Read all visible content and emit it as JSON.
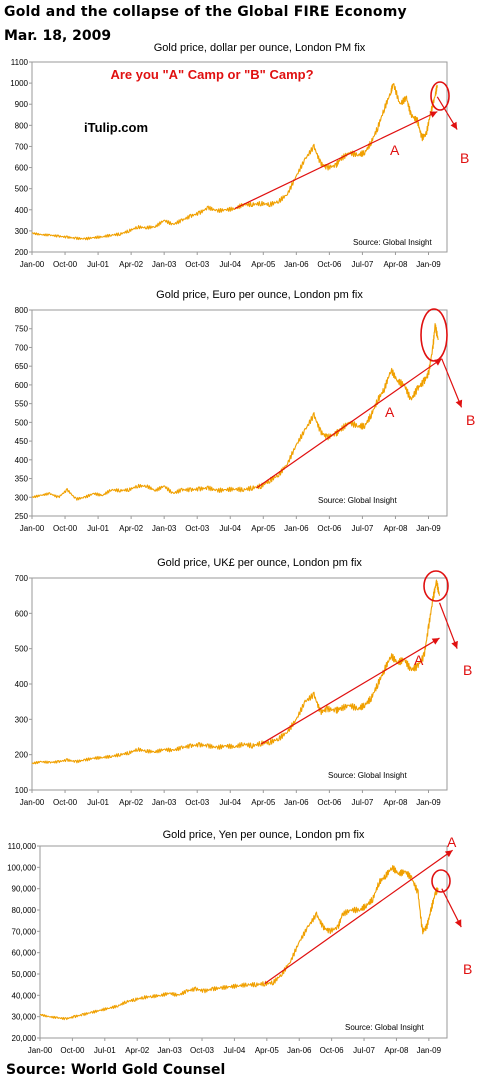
{
  "header": {
    "title": "Gold and the collapse of the Global FIRE Economy",
    "date": "Mar. 18, 2009"
  },
  "footer": {
    "source": "Source: World Gold Counsel"
  },
  "colors": {
    "line": "#f0a000",
    "annotation": "#e01010",
    "plot_border": "#9a9a9a",
    "text": "#000000"
  },
  "chart_data": [
    {
      "type": "line",
      "title": "Gold price, dollar per ounce, London PM fix",
      "subtitle": "Are you \"A\" Camp or \"B\" Camp?",
      "watermark": "iTulip.com",
      "source_note": "Source: Global Insight",
      "xlabel": "",
      "ylabel": "",
      "x_ticks": [
        "Jan-00",
        "Oct-00",
        "Jul-01",
        "Apr-02",
        "Jan-03",
        "Oct-03",
        "Jul-04",
        "Apr-05",
        "Jan-06",
        "Oct-06",
        "Jul-07",
        "Apr-08",
        "Jan-09"
      ],
      "y_ticks": [
        "200",
        "300",
        "400",
        "500",
        "600",
        "700",
        "800",
        "900",
        "1000",
        "1100"
      ],
      "ylim": [
        200,
        1100
      ],
      "grid": false,
      "series": [
        {
          "values": [
            [
              2000.0,
              290
            ],
            [
              2000.2,
              282
            ],
            [
              2000.4,
              280
            ],
            [
              2000.6,
              275
            ],
            [
              2000.8,
              270
            ],
            [
              2001.0,
              265
            ],
            [
              2001.2,
              262
            ],
            [
              2001.4,
              268
            ],
            [
              2001.6,
              272
            ],
            [
              2001.8,
              280
            ],
            [
              2002.0,
              285
            ],
            [
              2002.2,
              300
            ],
            [
              2002.4,
              318
            ],
            [
              2002.6,
              315
            ],
            [
              2002.8,
              320
            ],
            [
              2003.0,
              350
            ],
            [
              2003.2,
              330
            ],
            [
              2003.4,
              350
            ],
            [
              2003.6,
              370
            ],
            [
              2003.8,
              385
            ],
            [
              2004.0,
              410
            ],
            [
              2004.2,
              395
            ],
            [
              2004.4,
              400
            ],
            [
              2004.6,
              405
            ],
            [
              2004.8,
              425
            ],
            [
              2005.0,
              425
            ],
            [
              2005.2,
              430
            ],
            [
              2005.4,
              425
            ],
            [
              2005.6,
              440
            ],
            [
              2005.8,
              475
            ],
            [
              2006.0,
              560
            ],
            [
              2006.2,
              640
            ],
            [
              2006.4,
              700
            ],
            [
              2006.55,
              620
            ],
            [
              2006.7,
              600
            ],
            [
              2006.9,
              610
            ],
            [
              2007.0,
              640
            ],
            [
              2007.2,
              670
            ],
            [
              2007.4,
              660
            ],
            [
              2007.55,
              670
            ],
            [
              2007.7,
              720
            ],
            [
              2007.85,
              790
            ],
            [
              2008.0,
              880
            ],
            [
              2008.15,
              960
            ],
            [
              2008.2,
              1000
            ],
            [
              2008.35,
              900
            ],
            [
              2008.5,
              930
            ],
            [
              2008.6,
              850
            ],
            [
              2008.75,
              820
            ],
            [
              2008.85,
              740
            ],
            [
              2008.95,
              760
            ],
            [
              2009.05,
              860
            ],
            [
              2009.15,
              940
            ],
            [
              2009.2,
              990
            ]
          ]
        }
      ],
      "annotations": [
        {
          "label": "A",
          "from": [
            2004.6,
            405
          ],
          "to": [
            2009.2,
            865
          ]
        },
        {
          "label": "B",
          "from": [
            2009.2,
            935
          ],
          "to": [
            2009.65,
            780
          ]
        }
      ]
    },
    {
      "type": "line",
      "title": "Gold price, Euro per ounce, London pm fix",
      "source_note": "Source: Global Insight",
      "xlabel": "",
      "ylabel": "",
      "x_ticks": [
        "Jan-00",
        "Oct-00",
        "Jul-01",
        "Apr-02",
        "Jan-03",
        "Oct-03",
        "Jul-04",
        "Apr-05",
        "Jan-06",
        "Oct-06",
        "Jul-07",
        "Apr-08",
        "Jan-09"
      ],
      "y_ticks": [
        "250",
        "300",
        "350",
        "400",
        "450",
        "500",
        "550",
        "600",
        "650",
        "700",
        "750",
        "800"
      ],
      "ylim": [
        250,
        800
      ],
      "grid": false,
      "series": [
        {
          "values": [
            [
              2000.0,
              300
            ],
            [
              2000.2,
              305
            ],
            [
              2000.4,
              310
            ],
            [
              2000.6,
              300
            ],
            [
              2000.8,
              320
            ],
            [
              2001.0,
              295
            ],
            [
              2001.2,
              300
            ],
            [
              2001.4,
              310
            ],
            [
              2001.6,
              305
            ],
            [
              2001.8,
              320
            ],
            [
              2002.0,
              318
            ],
            [
              2002.2,
              320
            ],
            [
              2002.4,
              330
            ],
            [
              2002.6,
              330
            ],
            [
              2002.8,
              318
            ],
            [
              2003.0,
              330
            ],
            [
              2003.2,
              310
            ],
            [
              2003.4,
              320
            ],
            [
              2003.6,
              320
            ],
            [
              2003.8,
              322
            ],
            [
              2004.0,
              325
            ],
            [
              2004.2,
              318
            ],
            [
              2004.4,
              320
            ],
            [
              2004.6,
              322
            ],
            [
              2004.8,
              320
            ],
            [
              2005.0,
              325
            ],
            [
              2005.2,
              330
            ],
            [
              2005.4,
              345
            ],
            [
              2005.6,
              360
            ],
            [
              2005.8,
              390
            ],
            [
              2006.0,
              440
            ],
            [
              2006.2,
              480
            ],
            [
              2006.4,
              520
            ],
            [
              2006.55,
              475
            ],
            [
              2006.7,
              460
            ],
            [
              2006.9,
              470
            ],
            [
              2007.0,
              480
            ],
            [
              2007.2,
              500
            ],
            [
              2007.4,
              490
            ],
            [
              2007.55,
              490
            ],
            [
              2007.7,
              520
            ],
            [
              2007.85,
              560
            ],
            [
              2008.0,
              590
            ],
            [
              2008.15,
              640
            ],
            [
              2008.3,
              610
            ],
            [
              2008.45,
              600
            ],
            [
              2008.6,
              560
            ],
            [
              2008.75,
              590
            ],
            [
              2008.9,
              610
            ],
            [
              2009.0,
              630
            ],
            [
              2009.1,
              700
            ],
            [
              2009.15,
              760
            ],
            [
              2009.22,
              720
            ]
          ]
        }
      ],
      "annotations": [
        {
          "label": "A",
          "from": [
            2005.1,
            325
          ],
          "to": [
            2009.3,
            670
          ]
        },
        {
          "label": "B",
          "from": [
            2009.3,
            670
          ],
          "to": [
            2009.75,
            540
          ]
        }
      ]
    },
    {
      "type": "line",
      "title": "Gold price, UK£ per ounce, London pm fix",
      "source_note": "Source: Global Insight",
      "xlabel": "",
      "ylabel": "",
      "x_ticks": [
        "Jan-00",
        "Oct-00",
        "Jul-01",
        "Apr-02",
        "Jan-03",
        "Oct-03",
        "Jul-04",
        "Apr-05",
        "Jan-06",
        "Oct-06",
        "Jul-07",
        "Apr-08",
        "Jan-09"
      ],
      "y_ticks": [
        "100",
        "200",
        "300",
        "400",
        "500",
        "600",
        "700"
      ],
      "ylim": [
        100,
        700
      ],
      "grid": false,
      "series": [
        {
          "values": [
            [
              2000.0,
              175
            ],
            [
              2000.2,
              180
            ],
            [
              2000.4,
              178
            ],
            [
              2000.6,
              180
            ],
            [
              2000.8,
              185
            ],
            [
              2001.0,
              180
            ],
            [
              2001.2,
              185
            ],
            [
              2001.4,
              190
            ],
            [
              2001.6,
              192
            ],
            [
              2001.8,
              195
            ],
            [
              2002.0,
              200
            ],
            [
              2002.2,
              205
            ],
            [
              2002.4,
              215
            ],
            [
              2002.6,
              210
            ],
            [
              2002.8,
              208
            ],
            [
              2003.0,
              215
            ],
            [
              2003.2,
              212
            ],
            [
              2003.4,
              220
            ],
            [
              2003.6,
              225
            ],
            [
              2003.8,
              228
            ],
            [
              2004.0,
              225
            ],
            [
              2004.2,
              220
            ],
            [
              2004.4,
              225
            ],
            [
              2004.6,
              222
            ],
            [
              2004.8,
              230
            ],
            [
              2005.0,
              225
            ],
            [
              2005.2,
              232
            ],
            [
              2005.4,
              235
            ],
            [
              2005.6,
              245
            ],
            [
              2005.8,
              265
            ],
            [
              2006.0,
              300
            ],
            [
              2006.2,
              350
            ],
            [
              2006.4,
              370
            ],
            [
              2006.55,
              320
            ],
            [
              2006.7,
              330
            ],
            [
              2006.9,
              325
            ],
            [
              2007.0,
              330
            ],
            [
              2007.2,
              340
            ],
            [
              2007.4,
              330
            ],
            [
              2007.55,
              340
            ],
            [
              2007.7,
              360
            ],
            [
              2007.85,
              400
            ],
            [
              2008.0,
              440
            ],
            [
              2008.15,
              480
            ],
            [
              2008.3,
              460
            ],
            [
              2008.45,
              470
            ],
            [
              2008.6,
              440
            ],
            [
              2008.75,
              450
            ],
            [
              2008.9,
              480
            ],
            [
              2009.0,
              560
            ],
            [
              2009.1,
              640
            ],
            [
              2009.18,
              690
            ],
            [
              2009.25,
              650
            ]
          ]
        }
      ],
      "annotations": [
        {
          "label": "A",
          "from": [
            2005.2,
            230
          ],
          "to": [
            2009.25,
            530
          ]
        },
        {
          "label": "B",
          "from": [
            2009.25,
            630
          ],
          "to": [
            2009.65,
            500
          ]
        }
      ]
    },
    {
      "type": "line",
      "title": "Gold price, Yen per ounce, London pm fix",
      "source_note": "Source: Global Insight",
      "xlabel": "",
      "ylabel": "",
      "x_ticks": [
        "Jan-00",
        "Oct-00",
        "Jul-01",
        "Apr-02",
        "Jan-03",
        "Oct-03",
        "Jul-04",
        "Apr-05",
        "Jan-06",
        "Oct-06",
        "Jul-07",
        "Apr-08",
        "Jan-09"
      ],
      "y_ticks": [
        "20,000",
        "30,000",
        "40,000",
        "50,000",
        "60,000",
        "70,000",
        "80,000",
        "90,000",
        "100,000",
        "110,000"
      ],
      "ylim": [
        20000,
        110000
      ],
      "grid": false,
      "series": [
        {
          "values": [
            [
              2000.0,
              31000
            ],
            [
              2000.2,
              30000
            ],
            [
              2000.4,
              29500
            ],
            [
              2000.6,
              29000
            ],
            [
              2000.8,
              30000
            ],
            [
              2001.0,
              31000
            ],
            [
              2001.2,
              32000
            ],
            [
              2001.4,
              33000
            ],
            [
              2001.6,
              34000
            ],
            [
              2001.8,
              35000
            ],
            [
              2002.0,
              37000
            ],
            [
              2002.2,
              38000
            ],
            [
              2002.4,
              39000
            ],
            [
              2002.6,
              39500
            ],
            [
              2002.8,
              40000
            ],
            [
              2003.0,
              41000
            ],
            [
              2003.2,
              40000
            ],
            [
              2003.4,
              42000
            ],
            [
              2003.6,
              43000
            ],
            [
              2003.8,
              42000
            ],
            [
              2004.0,
              43000
            ],
            [
              2004.2,
              43500
            ],
            [
              2004.4,
              44000
            ],
            [
              2004.6,
              44500
            ],
            [
              2004.8,
              45000
            ],
            [
              2005.0,
              45000
            ],
            [
              2005.2,
              45500
            ],
            [
              2005.4,
              46000
            ],
            [
              2005.6,
              50000
            ],
            [
              2005.8,
              56000
            ],
            [
              2006.0,
              65000
            ],
            [
              2006.2,
              72000
            ],
            [
              2006.4,
              78000
            ],
            [
              2006.55,
              72000
            ],
            [
              2006.7,
              70000
            ],
            [
              2006.9,
              72000
            ],
            [
              2007.0,
              78000
            ],
            [
              2007.2,
              80000
            ],
            [
              2007.4,
              80000
            ],
            [
              2007.55,
              82000
            ],
            [
              2007.7,
              85000
            ],
            [
              2007.85,
              93000
            ],
            [
              2008.0,
              96000
            ],
            [
              2008.15,
              100000
            ],
            [
              2008.3,
              97000
            ],
            [
              2008.45,
              98000
            ],
            [
              2008.6,
              95000
            ],
            [
              2008.75,
              88000
            ],
            [
              2008.85,
              70000
            ],
            [
              2008.95,
              72000
            ],
            [
              2009.05,
              80000
            ],
            [
              2009.15,
              88000
            ],
            [
              2009.22,
              90000
            ]
          ]
        }
      ],
      "annotations": [
        {
          "label": "A",
          "from": [
            2005.2,
            45500
          ],
          "to": [
            2009.55,
            108000
          ]
        },
        {
          "label": "B",
          "from": [
            2009.3,
            90000
          ],
          "to": [
            2009.75,
            72000
          ]
        }
      ]
    }
  ]
}
